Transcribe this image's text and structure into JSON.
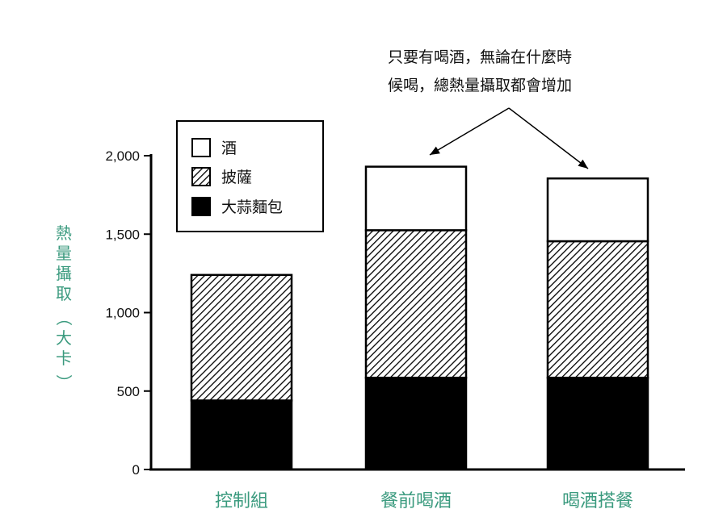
{
  "chart_data": {
    "type": "bar",
    "stacked": true,
    "categories": [
      "控制組",
      "餐前喝酒",
      "喝酒搭餐"
    ],
    "series": [
      {
        "name": "大蒜麵包",
        "values": [
          440,
          585,
          585
        ],
        "pattern": "solid",
        "color": "#000000"
      },
      {
        "name": "披薩",
        "values": [
          800,
          940,
          870
        ],
        "pattern": "hatched",
        "color": "#000000"
      },
      {
        "name": "酒",
        "values": [
          0,
          405,
          400
        ],
        "pattern": "empty",
        "color": "#ffffff"
      }
    ],
    "legend_order": [
      "酒",
      "披薩",
      "大蒜麵包"
    ],
    "legend_position": "top-left",
    "ylabel": "熱量攝取（大卡）",
    "ylim": [
      0,
      2000
    ],
    "yticks": [
      0,
      500,
      1000,
      1500,
      2000
    ],
    "ytick_labels": [
      "0",
      "500",
      "1,000",
      "1,500",
      "2,000"
    ],
    "grid": false,
    "annotation": {
      "lines": [
        "只要有喝酒，無論在什麼時",
        "候喝，總熱量攝取都會增加"
      ],
      "arrow_targets": [
        "餐前喝酒",
        "喝酒搭餐"
      ]
    },
    "label_color": "#3a9a7e"
  }
}
